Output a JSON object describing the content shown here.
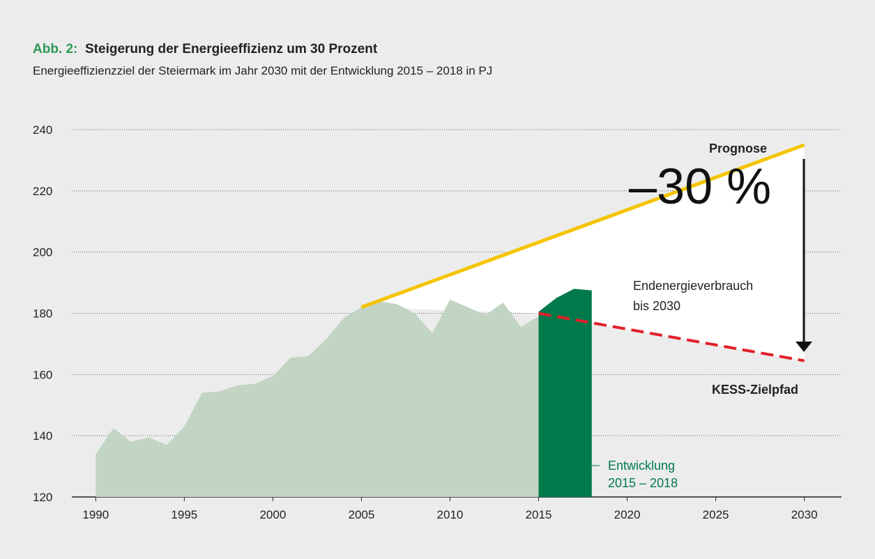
{
  "chart_data": {
    "type": "area",
    "title_prefix": "Abb. 2:",
    "title": "Steigerung der Energieeffizienz um 30 Prozent",
    "subtitle": "Energieeffizienzziel der Steiermark im Jahr 2030 mit der Entwicklung 2015 – 2018 in PJ",
    "xlim": [
      1988.65,
      2032.1
    ],
    "xticks": [
      1990,
      1995,
      2000,
      2005,
      2010,
      2015,
      2020,
      2025,
      2030
    ],
    "ylim": [
      120,
      240
    ],
    "yticks": [
      120,
      140,
      160,
      180,
      200,
      220,
      240
    ],
    "grid": true,
    "series": [
      {
        "kind": "area",
        "color": "#c2d4c4",
        "x": [
          1990,
          1991,
          1992,
          1993,
          1994,
          1995,
          1996,
          1997,
          1998,
          1999,
          2000,
          2001,
          2002,
          2003,
          2004,
          2005,
          2006,
          2007,
          2008,
          2009,
          2010,
          2011,
          2012,
          2013,
          2014,
          2015
        ],
        "values": [
          134,
          142.5,
          138,
          139.5,
          137,
          143,
          154,
          154.5,
          156.5,
          157,
          159.5,
          165.5,
          166,
          171.5,
          178.5,
          182,
          184,
          183,
          180,
          173.5,
          184.5,
          182,
          179.5,
          183.5,
          175.5,
          179
        ]
      },
      {
        "kind": "area",
        "color": "#007a4a",
        "label_lines": [
          "Entwicklung",
          "2015 – 2018"
        ],
        "x": [
          2015,
          2016,
          2017,
          2018
        ],
        "values": [
          180.5,
          185,
          188,
          187.5
        ]
      },
      {
        "kind": "line",
        "name": "Prognose",
        "color": "#f5c400",
        "x": [
          2005,
          2030
        ],
        "values": [
          182,
          235
        ]
      },
      {
        "kind": "line",
        "name": "KESS-Zielpfad",
        "color": "#e0202a",
        "dashed": true,
        "x": [
          2015,
          2030
        ],
        "values": [
          180,
          164.5
        ]
      }
    ],
    "annotation": {
      "big": "–30 %",
      "lines": [
        "Endenergieverbrauch",
        "bis 2030"
      ]
    }
  }
}
